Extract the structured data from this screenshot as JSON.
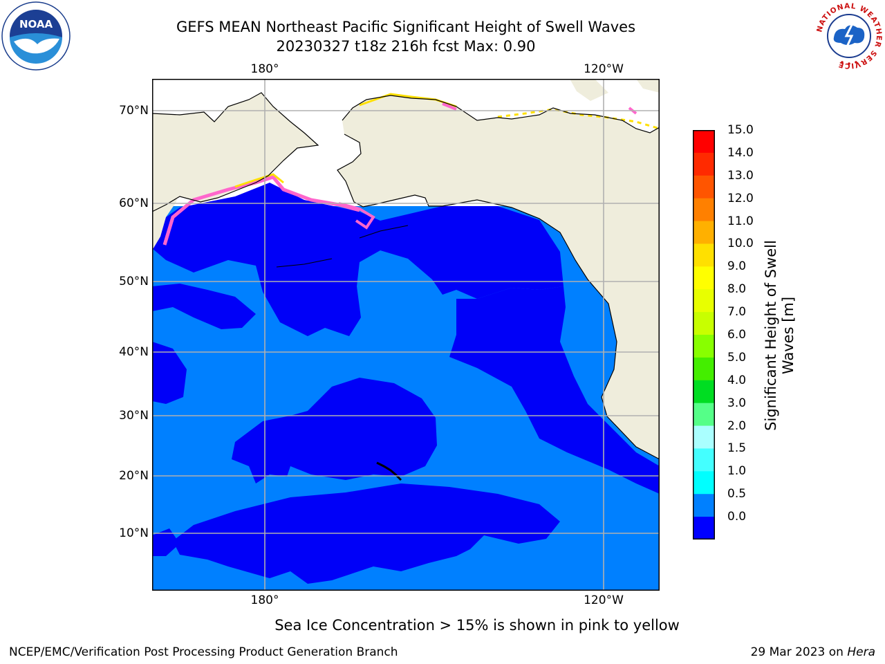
{
  "header": {
    "title_line1": "GEFS MEAN Northeast Pacific Significant Height of Swell Waves",
    "title_line2": "20230327 t18z 216h fcst    Max: 0.90"
  },
  "logos": {
    "left": "NOAA",
    "right_ring_text": "NATIONAL WEATHER SERVICE"
  },
  "map": {
    "lon_labels": [
      "180°",
      "120°W"
    ],
    "lat_labels": [
      "70°N",
      "60°N",
      "50°N",
      "40°N",
      "30°N",
      "20°N",
      "10°N"
    ],
    "colors": {
      "land": "#efeddc",
      "water_low": "#0000f8",
      "water_mid": "#0080ff",
      "ice_pink": "#ff66cc",
      "ice_yellow": "#ffe000",
      "grid": "#b0b0b0"
    }
  },
  "colorbar": {
    "ticks": [
      "15.0",
      "14.0",
      "13.0",
      "12.0",
      "11.0",
      "10.0",
      "9.0",
      "8.0",
      "7.0",
      "6.0",
      "5.0",
      "4.0",
      "3.0",
      "2.0",
      "1.5",
      "1.0",
      "0.5",
      "0.0"
    ],
    "colors": [
      "#ff0000",
      "#ff2a00",
      "#ff5500",
      "#ff8000",
      "#ffb000",
      "#ffe000",
      "#ffff00",
      "#e8ff00",
      "#c8ff00",
      "#88ff00",
      "#44ee00",
      "#00dd22",
      "#55ff88",
      "#aaffff",
      "#44ffff",
      "#00ffff",
      "#0080ff",
      "#0000ff"
    ],
    "label_line1": "Significant Height of Swell",
    "label_line2": "Waves [m]"
  },
  "note": "Sea Ice Concentration > 15% is shown in pink to yellow",
  "footer": {
    "left": "NCEP/EMC/Verification Post Processing Product Generation Branch",
    "right_date": "29 Mar 2023 on ",
    "right_host": "Hera"
  }
}
